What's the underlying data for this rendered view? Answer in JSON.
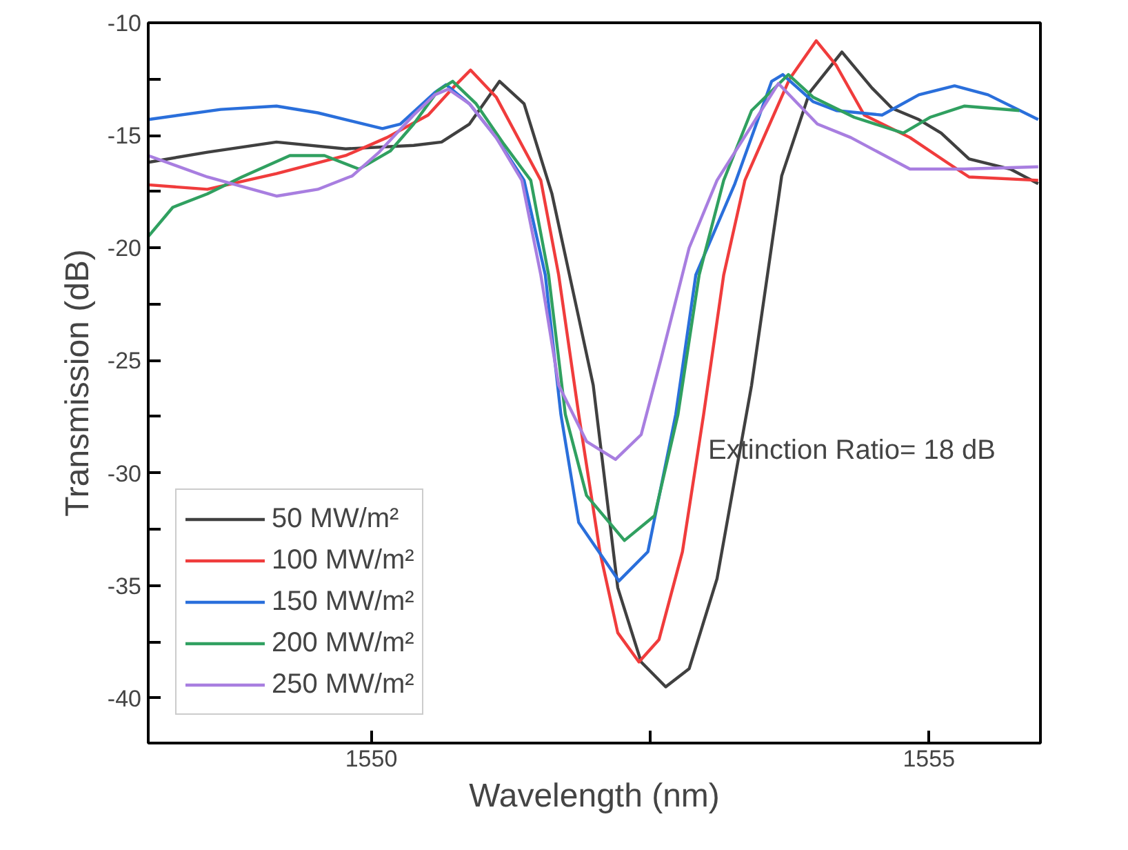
{
  "chart_data": {
    "type": "line",
    "xlabel": "Wavelength (nm)",
    "ylabel": "Transmission (dB)",
    "xlim": [
      1548,
      1556
    ],
    "ylim": [
      -42,
      -10
    ],
    "xticks": [
      1550,
      {
        "value": 1552.5,
        "label": null
      },
      1555
    ],
    "yticks": [
      -10,
      {
        "value": -12.5,
        "label": null
      },
      -15,
      {
        "value": -17.5,
        "label": null
      },
      -20,
      {
        "value": -22.5,
        "label": null
      },
      -25,
      {
        "value": -27.5,
        "label": null
      },
      -30,
      {
        "value": -32.5,
        "label": null
      },
      -35,
      {
        "value": -37.5,
        "label": null
      },
      -40
    ],
    "grid": false,
    "legend": "bottom left",
    "line_style": "solid",
    "annotations": [
      "Extinction Ratio= 18 dB"
    ],
    "series": [
      {
        "name": "50 MW/m²",
        "color": "#404040",
        "x": [
          1548.0,
          1548.53,
          1549.15,
          1549.77,
          1550.38,
          1550.63,
          1550.88,
          1551.15,
          1551.37,
          1551.62,
          1551.86,
          1551.99,
          1552.21,
          1552.42,
          1552.64,
          1552.85,
          1553.1,
          1553.41,
          1553.68,
          1553.93,
          1554.22,
          1554.49,
          1554.67,
          1554.91,
          1555.11,
          1555.36,
          1555.73,
          1555.98
        ],
        "values": [
          -16.2,
          -15.75,
          -15.3,
          -15.6,
          -15.45,
          -15.3,
          -14.5,
          -12.6,
          -13.6,
          -17.6,
          -23.1,
          -26.1,
          -35.1,
          -38.4,
          -39.5,
          -38.7,
          -34.7,
          -26.1,
          -16.8,
          -13.1,
          -11.3,
          -12.9,
          -13.8,
          -14.3,
          -14.9,
          -16.05,
          -16.5,
          -17.15
        ]
      },
      {
        "name": "100 MW/m²",
        "color": "#f03c3c",
        "x": [
          1548.0,
          1548.53,
          1549.15,
          1549.77,
          1550.14,
          1550.51,
          1550.75,
          1550.89,
          1551.12,
          1551.52,
          1551.68,
          1551.86,
          1552.05,
          1552.21,
          1552.4,
          1552.58,
          1552.79,
          1552.98,
          1553.16,
          1553.35,
          1553.75,
          1553.99,
          1554.17,
          1554.42,
          1554.83,
          1555.16,
          1555.36,
          1555.98
        ],
        "values": [
          -17.2,
          -17.4,
          -16.7,
          -15.9,
          -15.1,
          -14.1,
          -12.8,
          -12.1,
          -13.3,
          -17.0,
          -21.2,
          -27.4,
          -33.5,
          -37.1,
          -38.4,
          -37.4,
          -33.5,
          -27.4,
          -21.2,
          -17.0,
          -12.5,
          -10.8,
          -11.9,
          -14.1,
          -15.1,
          -16.2,
          -16.85,
          -17.0
        ]
      },
      {
        "name": "150 MW/m²",
        "color": "#2a6fdb",
        "x": [
          1548.0,
          1548.65,
          1549.15,
          1549.52,
          1550.1,
          1550.26,
          1550.57,
          1550.67,
          1550.88,
          1551.12,
          1551.37,
          1551.56,
          1551.7,
          1551.86,
          1552.22,
          1552.48,
          1552.73,
          1552.91,
          1553.26,
          1553.59,
          1553.69,
          1553.96,
          1554.17,
          1554.58,
          1554.91,
          1555.23,
          1555.53,
          1555.98
        ],
        "values": [
          -14.3,
          -13.85,
          -13.7,
          -14.0,
          -14.7,
          -14.5,
          -13.1,
          -12.75,
          -13.6,
          -15.1,
          -17.0,
          -21.2,
          -27.4,
          -32.2,
          -34.8,
          -33.5,
          -27.4,
          -21.2,
          -17.15,
          -12.6,
          -12.3,
          -13.5,
          -13.9,
          -14.1,
          -13.2,
          -12.8,
          -13.2,
          -14.3
        ]
      },
      {
        "name": "200 MW/m²",
        "color": "#30a060",
        "x": [
          1548.0,
          1548.22,
          1548.53,
          1548.84,
          1549.27,
          1549.58,
          1549.89,
          1550.17,
          1550.38,
          1550.6,
          1550.73,
          1550.94,
          1551.19,
          1551.43,
          1551.59,
          1551.74,
          1551.93,
          1552.27,
          1552.54,
          1552.75,
          1552.94,
          1553.16,
          1553.41,
          1553.74,
          1553.96,
          1554.33,
          1554.77,
          1555.01,
          1555.32,
          1555.81
        ],
        "values": [
          -19.5,
          -18.2,
          -17.6,
          -16.85,
          -15.9,
          -15.9,
          -16.5,
          -15.7,
          -14.5,
          -13.0,
          -12.6,
          -13.6,
          -15.4,
          -17.0,
          -21.2,
          -27.4,
          -31.0,
          -33.0,
          -31.9,
          -27.4,
          -21.2,
          -17.0,
          -13.9,
          -12.3,
          -13.3,
          -14.2,
          -14.9,
          -14.2,
          -13.7,
          -13.9
        ]
      },
      {
        "name": "250 MW/m²",
        "color": "#a87ee0",
        "x": [
          1548.0,
          1548.53,
          1549.15,
          1549.52,
          1549.83,
          1550.07,
          1550.38,
          1550.57,
          1550.69,
          1550.88,
          1551.12,
          1551.35,
          1551.52,
          1551.68,
          1551.93,
          1552.19,
          1552.42,
          1552.6,
          1552.85,
          1553.1,
          1553.65,
          1554.0,
          1554.3,
          1554.83,
          1555.32,
          1555.98
        ],
        "values": [
          -15.9,
          -16.85,
          -17.7,
          -17.4,
          -16.8,
          -15.75,
          -14.1,
          -13.2,
          -12.95,
          -13.6,
          -15.1,
          -17.0,
          -21.2,
          -26.1,
          -28.6,
          -29.4,
          -28.3,
          -24.9,
          -20.0,
          -17.0,
          -12.7,
          -14.5,
          -15.1,
          -16.5,
          -16.5,
          -16.4
        ]
      }
    ]
  }
}
